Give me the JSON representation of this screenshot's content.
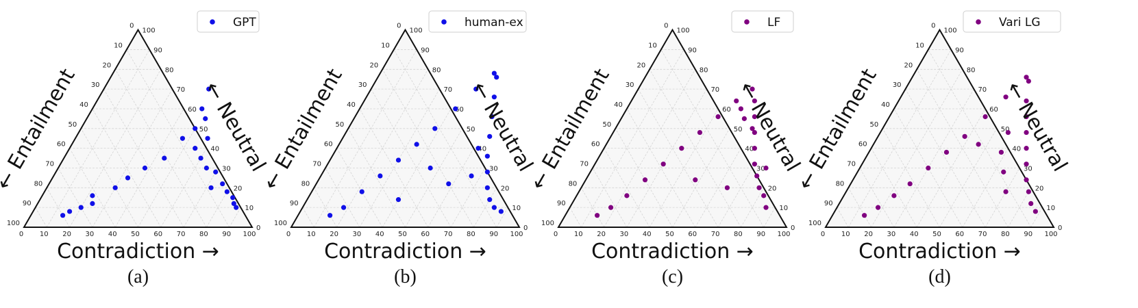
{
  "chart_data": [
    {
      "type": "scatter",
      "plot_kind": "ternary",
      "legend": "GPT",
      "caption": "(a)",
      "color": "#1010e8",
      "left_axis_label": "← Entailment",
      "right_axis_label": "← Neutral",
      "bottom_axis_label": "Contradiction →",
      "bottom_ticks": [
        "0",
        "10",
        "20",
        "30",
        "40",
        "50",
        "60",
        "70",
        "80",
        "90",
        "100"
      ],
      "left_ticks": [
        "100",
        "90",
        "80",
        "70",
        "60",
        "50",
        "40",
        "30",
        "20",
        "10",
        "0"
      ],
      "right_ticks": [
        "0",
        "10",
        "20",
        "30",
        "40",
        "50",
        "60",
        "70",
        "80",
        "90",
        "100"
      ],
      "axis_range": [
        0,
        100
      ],
      "grid": true,
      "legend_position": "top-right",
      "sample_points": [
        [
          14,
          6
        ],
        [
          16,
          8
        ],
        [
          20,
          10
        ],
        [
          24,
          12
        ],
        [
          22,
          16
        ],
        [
          30,
          20
        ],
        [
          33,
          25
        ],
        [
          38,
          30
        ],
        [
          44,
          35
        ],
        [
          47,
          45
        ],
        [
          50,
          50
        ],
        [
          48,
          60
        ],
        [
          46,
          70
        ],
        [
          55,
          40
        ],
        [
          60,
          35
        ],
        [
          65,
          30
        ],
        [
          70,
          28
        ],
        [
          76,
          22
        ],
        [
          80,
          18
        ],
        [
          84,
          15
        ],
        [
          86,
          12
        ],
        [
          88,
          10
        ],
        [
          72,
          20
        ],
        [
          58,
          45
        ],
        [
          52,
          55
        ]
      ]
    },
    {
      "type": "scatter",
      "plot_kind": "ternary",
      "legend": "human-ex",
      "caption": "(b)",
      "color": "#1010e8",
      "left_axis_label": "← Entailment",
      "right_axis_label": "← Neutral",
      "bottom_axis_label": "Contradiction →",
      "bottom_ticks": [
        "0",
        "10",
        "20",
        "30",
        "40",
        "50",
        "60",
        "70",
        "80",
        "90",
        "100"
      ],
      "left_ticks": [
        "100",
        "90",
        "80",
        "70",
        "60",
        "50",
        "40",
        "30",
        "20",
        "10",
        "0"
      ],
      "right_ticks": [
        "0",
        "10",
        "20",
        "30",
        "40",
        "50",
        "60",
        "70",
        "80",
        "90",
        "100"
      ],
      "axis_range": [
        0,
        100
      ],
      "grid": true,
      "legend_position": "top-right",
      "sample_points": [
        [
          14,
          6
        ],
        [
          18,
          10
        ],
        [
          22,
          18
        ],
        [
          26,
          26
        ],
        [
          30,
          34
        ],
        [
          34,
          42
        ],
        [
          38,
          50
        ],
        [
          42,
          60
        ],
        [
          46,
          70
        ],
        [
          50,
          78
        ],
        [
          52,
          76
        ],
        [
          56,
          66
        ],
        [
          60,
          56
        ],
        [
          64,
          46
        ],
        [
          68,
          36
        ],
        [
          72,
          28
        ],
        [
          76,
          20
        ],
        [
          80,
          14
        ],
        [
          84,
          10
        ],
        [
          88,
          8
        ],
        [
          46,
          30
        ],
        [
          62,
          40
        ],
        [
          58,
          22
        ],
        [
          40,
          14
        ],
        [
          66,
          26
        ]
      ]
    },
    {
      "type": "scatter",
      "plot_kind": "ternary",
      "legend": "LF",
      "caption": "(c)",
      "color": "#800080",
      "left_axis_label": "← Entailment",
      "right_axis_label": "← Neutral",
      "bottom_axis_label": "Contradiction →",
      "bottom_ticks": [
        "0",
        "10",
        "20",
        "30",
        "40",
        "50",
        "60",
        "70",
        "80",
        "90",
        "100"
      ],
      "left_ticks": [
        "100",
        "90",
        "80",
        "70",
        "60",
        "50",
        "40",
        "30",
        "20",
        "10",
        "0"
      ],
      "right_ticks": [
        "0",
        "10",
        "20",
        "30",
        "40",
        "50",
        "60",
        "70",
        "80",
        "90",
        "100"
      ],
      "axis_range": [
        0,
        100
      ],
      "grid": true,
      "legend_position": "top-right",
      "sample_points": [
        [
          14,
          6
        ],
        [
          18,
          10
        ],
        [
          22,
          16
        ],
        [
          26,
          24
        ],
        [
          30,
          32
        ],
        [
          34,
          40
        ],
        [
          38,
          48
        ],
        [
          42,
          56
        ],
        [
          46,
          64
        ],
        [
          50,
          70
        ],
        [
          54,
          64
        ],
        [
          58,
          56
        ],
        [
          62,
          48
        ],
        [
          66,
          40
        ],
        [
          70,
          32
        ],
        [
          74,
          26
        ],
        [
          78,
          20
        ],
        [
          82,
          16
        ],
        [
          86,
          10
        ],
        [
          50,
          60
        ],
        [
          54,
          55
        ],
        [
          60,
          50
        ],
        [
          64,
          20
        ],
        [
          48,
          24
        ],
        [
          76,
          30
        ]
      ]
    },
    {
      "type": "scatter",
      "plot_kind": "ternary",
      "legend": "Vari LG",
      "caption": "(d)",
      "color": "#800080",
      "left_axis_label": "← Entailment",
      "right_axis_label": "← Neutral",
      "bottom_axis_label": "Contradiction →",
      "bottom_ticks": [
        "0",
        "10",
        "20",
        "30",
        "40",
        "50",
        "60",
        "70",
        "80",
        "90",
        "100"
      ],
      "left_ticks": [
        "100",
        "90",
        "80",
        "70",
        "60",
        "50",
        "40",
        "30",
        "20",
        "10",
        "0"
      ],
      "right_ticks": [
        "0",
        "10",
        "20",
        "30",
        "40",
        "50",
        "60",
        "70",
        "80",
        "90",
        "100"
      ],
      "axis_range": [
        0,
        100
      ],
      "grid": true,
      "legend_position": "top-right",
      "sample_points": [
        [
          14,
          6
        ],
        [
          18,
          10
        ],
        [
          22,
          16
        ],
        [
          26,
          22
        ],
        [
          30,
          30
        ],
        [
          34,
          38
        ],
        [
          38,
          46
        ],
        [
          42,
          56
        ],
        [
          46,
          66
        ],
        [
          50,
          76
        ],
        [
          52,
          74
        ],
        [
          56,
          64
        ],
        [
          60,
          56
        ],
        [
          64,
          48
        ],
        [
          68,
          40
        ],
        [
          72,
          32
        ],
        [
          76,
          24
        ],
        [
          80,
          18
        ],
        [
          84,
          12
        ],
        [
          88,
          8
        ],
        [
          58,
          38
        ],
        [
          46,
          42
        ],
        [
          64,
          28
        ],
        [
          70,
          18
        ],
        [
          56,
          48
        ]
      ]
    }
  ]
}
